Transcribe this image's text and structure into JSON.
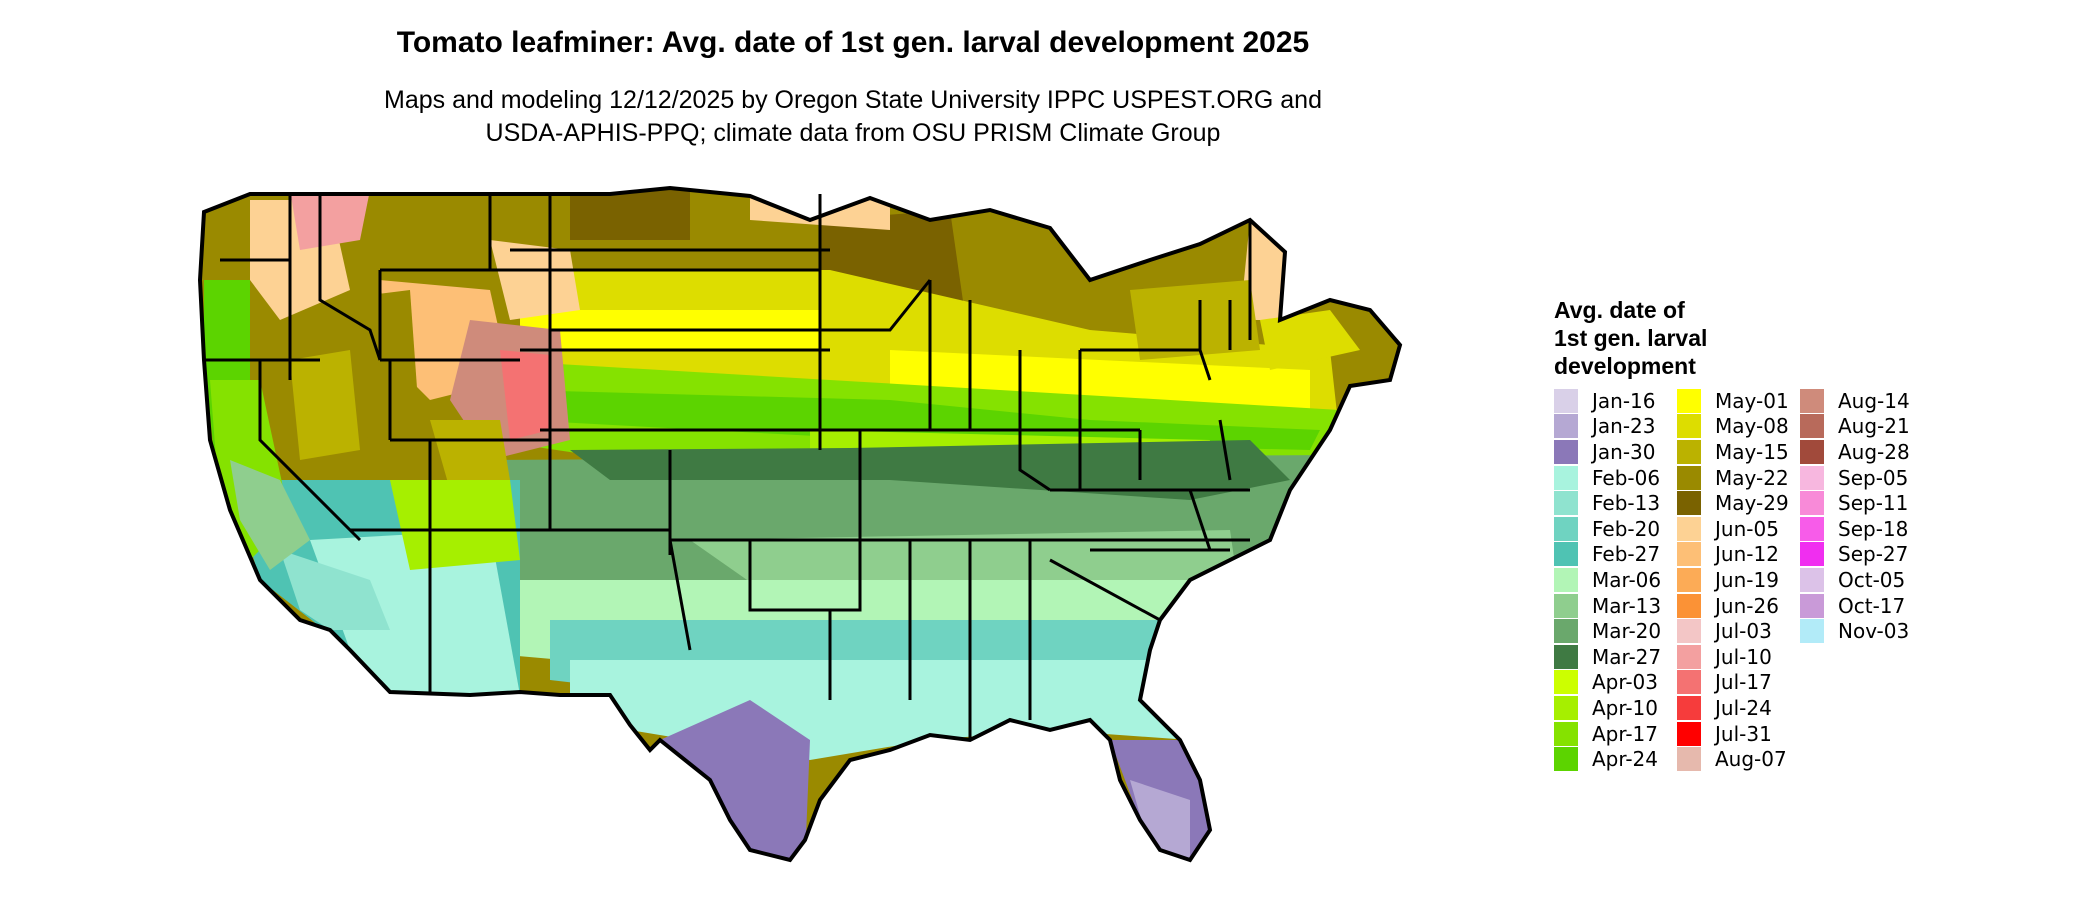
{
  "title": "Tomato leafminer: Avg. date of 1st gen. larval development 2025",
  "subtitle": [
    "Maps and modeling 12/12/2025 by Oregon State University IPPC USPEST.ORG and",
    "USDA-APHIS-PPQ; climate data from OSU PRISM Climate Group"
  ],
  "legend": {
    "title": [
      "Avg. date of",
      "1st gen. larval",
      "development"
    ],
    "columns": [
      [
        {
          "label": "Jan-16",
          "color": "#d9d0e8"
        },
        {
          "label": "Jan-23",
          "color": "#b5a8d3"
        },
        {
          "label": "Jan-30",
          "color": "#8b78b8"
        },
        {
          "label": "Feb-06",
          "color": "#a8f3de"
        },
        {
          "label": "Feb-13",
          "color": "#8fe3cf"
        },
        {
          "label": "Feb-20",
          "color": "#6fd3c1"
        },
        {
          "label": "Feb-27",
          "color": "#4fc3b3"
        },
        {
          "label": "Mar-06",
          "color": "#b2f5b6"
        },
        {
          "label": "Mar-13",
          "color": "#8fce8e"
        },
        {
          "label": "Mar-20",
          "color": "#6aa86c"
        },
        {
          "label": "Mar-27",
          "color": "#3f7a43"
        },
        {
          "label": "Apr-03",
          "color": "#ccff00"
        },
        {
          "label": "Apr-10",
          "color": "#a6ef00"
        },
        {
          "label": "Apr-17",
          "color": "#85e200"
        },
        {
          "label": "Apr-24",
          "color": "#5cd400"
        }
      ],
      [
        {
          "label": "May-01",
          "color": "#ffff00"
        },
        {
          "label": "May-08",
          "color": "#dddd00"
        },
        {
          "label": "May-15",
          "color": "#bbb200"
        },
        {
          "label": "May-22",
          "color": "#9a8a00"
        },
        {
          "label": "May-29",
          "color": "#7a6200"
        },
        {
          "label": "Jun-05",
          "color": "#fdd294"
        },
        {
          "label": "Jun-12",
          "color": "#fdbf76"
        },
        {
          "label": "Jun-19",
          "color": "#fcab56"
        },
        {
          "label": "Jun-26",
          "color": "#fb9236"
        },
        {
          "label": "Jul-03",
          "color": "#f3c6c6"
        },
        {
          "label": "Jul-10",
          "color": "#f3a0a0"
        },
        {
          "label": "Jul-17",
          "color": "#f47272"
        },
        {
          "label": "Jul-24",
          "color": "#f63c3c"
        },
        {
          "label": "Jul-31",
          "color": "#ff0000"
        },
        {
          "label": "Aug-07",
          "color": "#e6b9ad"
        }
      ],
      [
        {
          "label": "Aug-14",
          "color": "#cf8b7b"
        },
        {
          "label": "Aug-21",
          "color": "#b86a5b"
        },
        {
          "label": "Aug-28",
          "color": "#a14a3b"
        },
        {
          "label": "Sep-05",
          "color": "#f7b7df"
        },
        {
          "label": "Sep-11",
          "color": "#f88ad8"
        },
        {
          "label": "Sep-18",
          "color": "#f75ce9"
        },
        {
          "label": "Sep-27",
          "color": "#f02ef0"
        },
        {
          "label": "Oct-05",
          "color": "#dcc2e8"
        },
        {
          "label": "Oct-17",
          "color": "#c99ad8"
        },
        {
          "label": "Nov-03",
          "color": "#b2ebf8"
        }
      ]
    ]
  }
}
